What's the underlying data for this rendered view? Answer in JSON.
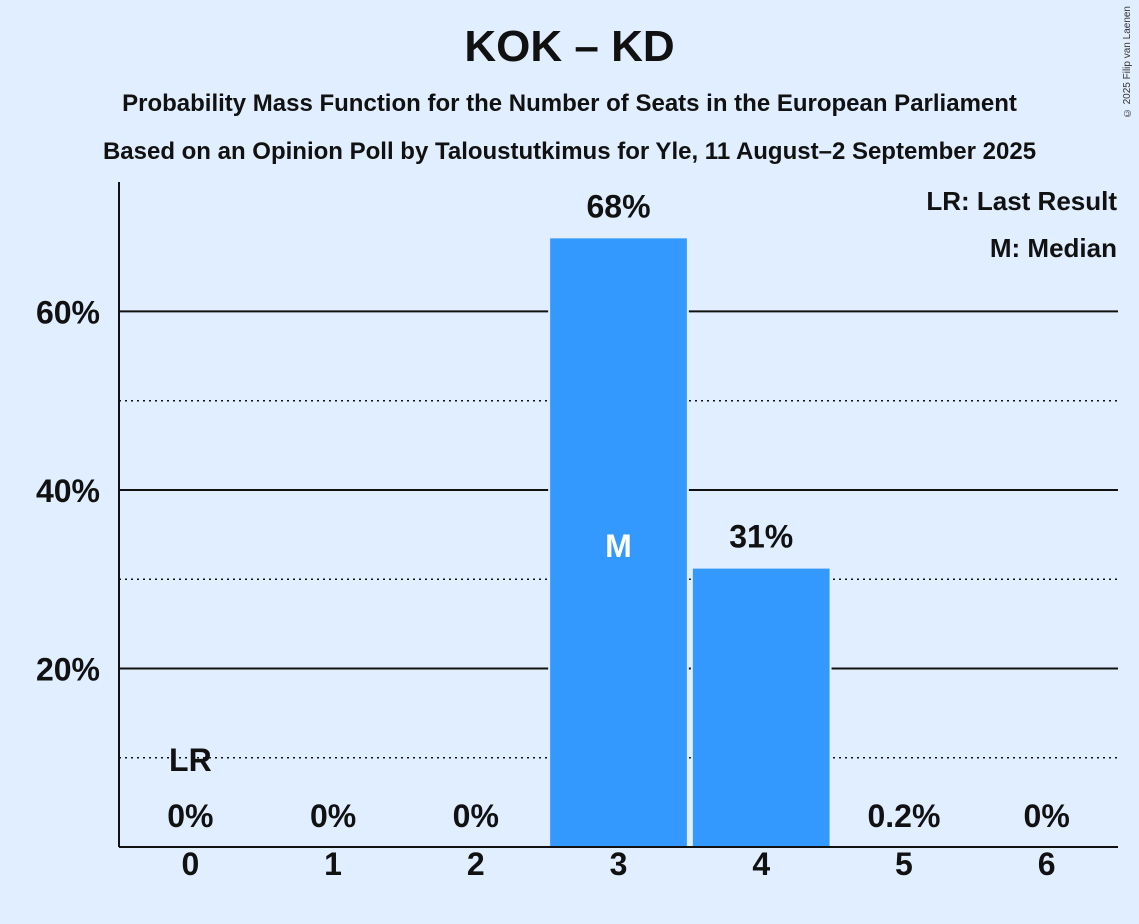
{
  "header": {
    "title": "KOK – KD",
    "subtitle1": "Probability Mass Function for the Number of Seats in the European Parliament",
    "subtitle2": "Based on an Opinion Poll by Taloustutkimus for Yle, 11 August–2 September 2025",
    "copyright": "© 2025 Filip van Laenen"
  },
  "legend": {
    "last_result": "LR: Last Result",
    "median": "M: Median"
  },
  "markers": {
    "last_result_label": "LR",
    "last_result_seat": 0,
    "median_label": "M",
    "median_seat": 3
  },
  "chart_data": {
    "type": "bar",
    "categories": [
      "0",
      "1",
      "2",
      "3",
      "4",
      "5",
      "6"
    ],
    "values": [
      0,
      0,
      0,
      68.3,
      31.3,
      0.2,
      0
    ],
    "labels": [
      "0%",
      "0%",
      "0%",
      "68%",
      "31%",
      "0.2%",
      "0%"
    ],
    "yticks": [
      "20%",
      "40%",
      "60%"
    ],
    "ytick_values": [
      20,
      40,
      60
    ],
    "minor_gridlines": [
      10,
      30,
      50
    ],
    "ylim": [
      0,
      74.5
    ],
    "bar_color": "#3399ff",
    "background": "#e0eeff"
  }
}
